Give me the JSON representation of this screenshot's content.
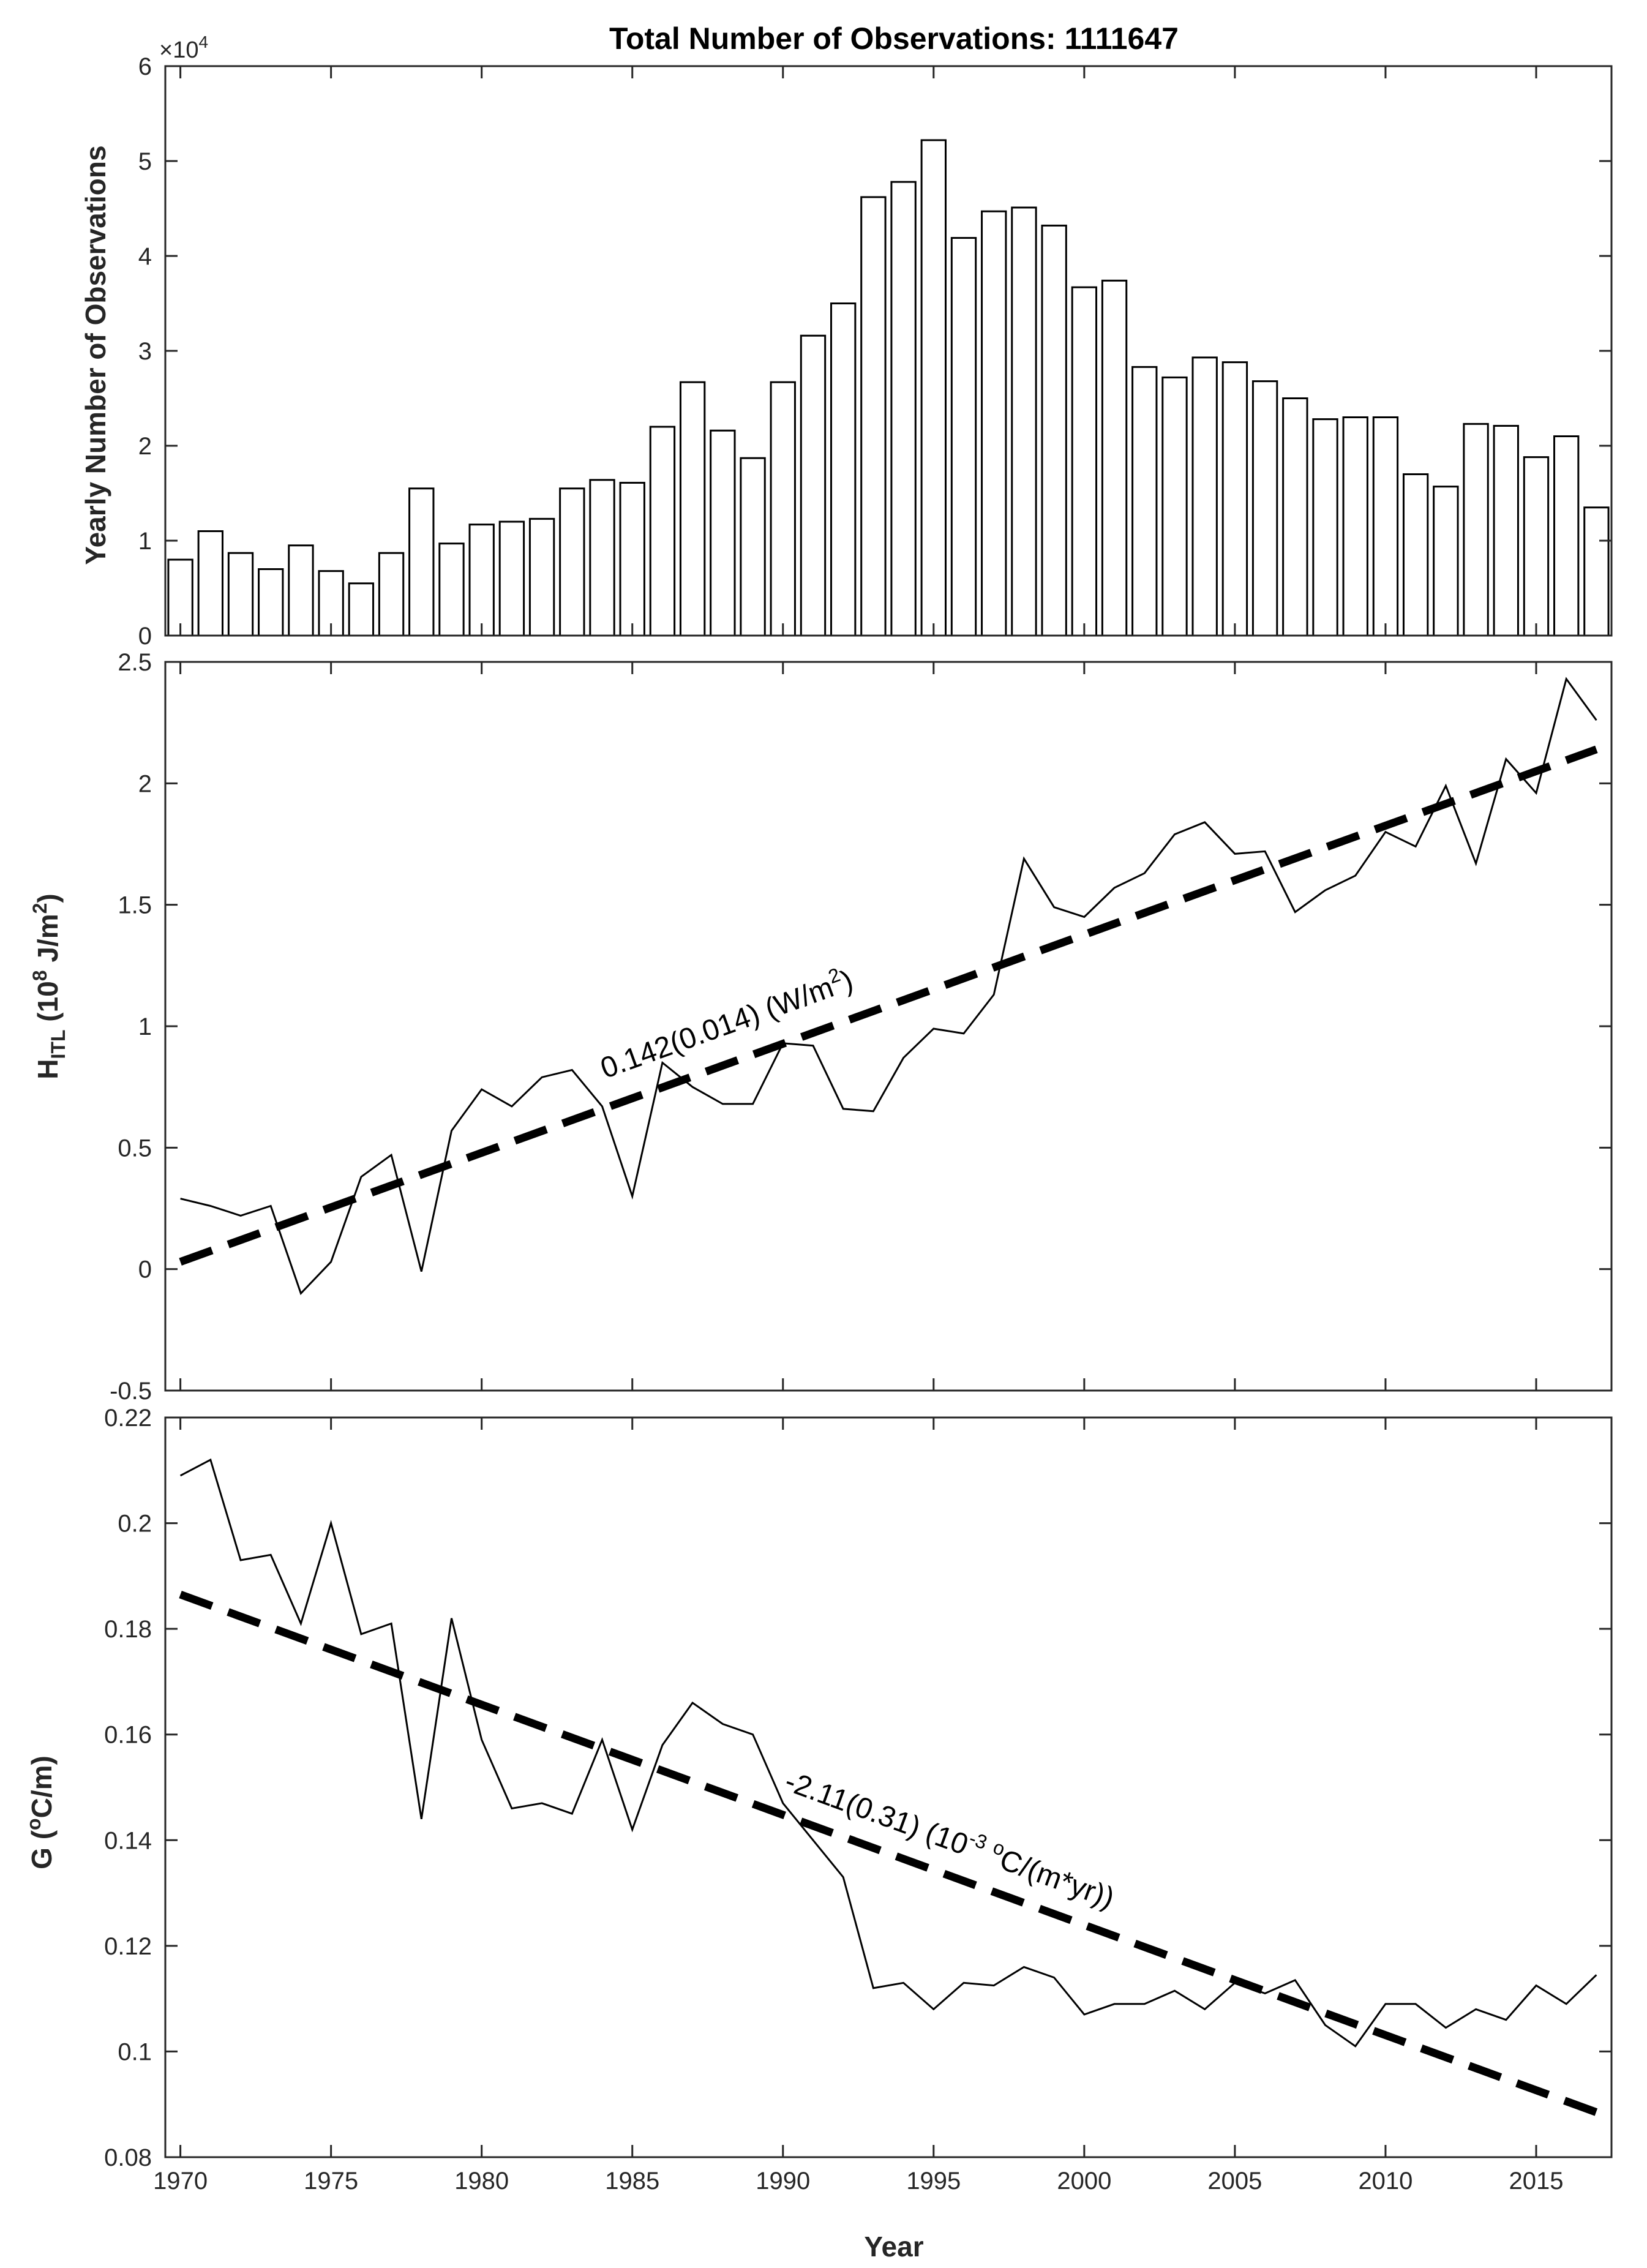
{
  "chart_data": [
    {
      "type": "bar",
      "title": "Total Number of Observations: 1111647",
      "ylabel": "Yearly Number of Observations",
      "y_exponent_label": "×10",
      "y_exponent_power": "4",
      "ylim": [
        0,
        6
      ],
      "yticks": [
        0,
        1,
        2,
        3,
        4,
        5,
        6
      ],
      "ytick_labels": [
        "0",
        "1",
        "2",
        "3",
        "4",
        "5",
        "6"
      ],
      "x": [
        1970,
        1971,
        1972,
        1973,
        1974,
        1975,
        1976,
        1977,
        1978,
        1979,
        1980,
        1981,
        1982,
        1983,
        1984,
        1985,
        1986,
        1987,
        1988,
        1989,
        1990,
        1991,
        1992,
        1993,
        1994,
        1995,
        1996,
        1997,
        1998,
        1999,
        2000,
        2001,
        2002,
        2003,
        2004,
        2005,
        2006,
        2007,
        2008,
        2009,
        2010,
        2011,
        2012,
        2013,
        2014,
        2015,
        2016,
        2017
      ],
      "values": [
        0.8,
        1.1,
        0.87,
        0.7,
        0.95,
        0.68,
        0.55,
        0.87,
        1.55,
        0.97,
        1.17,
        1.2,
        1.23,
        1.55,
        1.64,
        1.61,
        2.2,
        2.67,
        2.16,
        1.87,
        2.67,
        3.16,
        3.5,
        4.62,
        4.78,
        5.22,
        4.19,
        4.47,
        4.51,
        4.32,
        3.67,
        3.74,
        2.83,
        2.72,
        2.93,
        2.88,
        2.68,
        2.5,
        2.28,
        2.3,
        2.3,
        1.7,
        1.57,
        2.23,
        2.21,
        1.88,
        2.1,
        1.35
      ]
    },
    {
      "type": "line",
      "ylabel_main": "H",
      "ylabel_sub": "ITL",
      "ylabel_rest": " (10",
      "ylabel_sup": "8",
      "ylabel_units": " J/m",
      "ylabel_sup2": "2",
      "ylabel_close": ")",
      "ylim": [
        -0.5,
        2.5
      ],
      "yticks": [
        -0.5,
        0,
        0.5,
        1,
        1.5,
        2,
        2.5
      ],
      "ytick_labels": [
        "-0.5",
        "0",
        "0.5",
        "1",
        "1.5",
        "2",
        "2.5"
      ],
      "x": [
        1970,
        1971,
        1972,
        1973,
        1974,
        1975,
        1976,
        1977,
        1978,
        1979,
        1980,
        1981,
        1982,
        1983,
        1984,
        1985,
        1986,
        1987,
        1988,
        1989,
        1990,
        1991,
        1992,
        1993,
        1994,
        1995,
        1996,
        1997,
        1998,
        1999,
        2000,
        2001,
        2002,
        2003,
        2004,
        2005,
        2006,
        2007,
        2008,
        2009,
        2010,
        2011,
        2012,
        2013,
        2014,
        2015,
        2016,
        2017
      ],
      "values": [
        0.29,
        0.26,
        0.22,
        0.26,
        -0.1,
        0.03,
        0.38,
        0.47,
        -0.01,
        0.57,
        0.74,
        0.67,
        0.79,
        0.82,
        0.67,
        0.3,
        0.85,
        0.75,
        0.68,
        0.68,
        0.93,
        0.92,
        0.66,
        0.65,
        0.87,
        0.99,
        0.97,
        1.13,
        1.69,
        1.49,
        1.45,
        1.57,
        1.63,
        1.79,
        1.84,
        1.71,
        1.72,
        1.47,
        1.56,
        1.62,
        1.8,
        1.74,
        1.99,
        1.67,
        2.1,
        1.96,
        2.43,
        2.26
      ],
      "trend": {
        "x": [
          1970,
          2017
        ],
        "y": [
          0.03,
          2.14
        ]
      },
      "annotation_main": "0.142(0.014) (W/m",
      "annotation_sup": "2",
      "annotation_close": ")"
    },
    {
      "type": "line",
      "ylabel_main": "G (",
      "ylabel_sup": "o",
      "ylabel_rest": "C/m)",
      "xlabel": "Year",
      "ylim": [
        0.08,
        0.22
      ],
      "yticks": [
        0.08,
        0.1,
        0.12,
        0.14,
        0.16,
        0.18,
        0.2,
        0.22
      ],
      "ytick_labels": [
        "0.08",
        "0.1",
        "0.12",
        "0.14",
        "0.16",
        "0.18",
        "0.2",
        "0.22"
      ],
      "xticks": [
        1970,
        1975,
        1980,
        1985,
        1990,
        1995,
        2000,
        2005,
        2010,
        2015
      ],
      "xtick_labels": [
        "1970",
        "1975",
        "1980",
        "1985",
        "1990",
        "1995",
        "2000",
        "2005",
        "2010",
        "2015"
      ],
      "x": [
        1970,
        1971,
        1972,
        1973,
        1974,
        1975,
        1976,
        1977,
        1978,
        1979,
        1980,
        1981,
        1982,
        1983,
        1984,
        1985,
        1986,
        1987,
        1988,
        1989,
        1990,
        1991,
        1992,
        1993,
        1994,
        1995,
        1996,
        1997,
        1998,
        1999,
        2000,
        2001,
        2002,
        2003,
        2004,
        2005,
        2006,
        2007,
        2008,
        2009,
        2010,
        2011,
        2012,
        2013,
        2014,
        2015,
        2016,
        2017
      ],
      "values": [
        0.209,
        0.212,
        0.193,
        0.194,
        0.181,
        0.2,
        0.179,
        0.181,
        0.144,
        0.182,
        0.159,
        0.146,
        0.147,
        0.145,
        0.159,
        0.142,
        0.158,
        0.166,
        0.162,
        0.16,
        0.147,
        0.14,
        0.133,
        0.112,
        0.113,
        0.108,
        0.113,
        0.1125,
        0.116,
        0.114,
        0.107,
        0.109,
        0.109,
        0.1115,
        0.108,
        0.113,
        0.111,
        0.1135,
        0.105,
        0.101,
        0.109,
        0.109,
        0.1045,
        0.108,
        0.106,
        0.1125,
        0.109,
        0.1145
      ],
      "trend": {
        "x": [
          1970,
          2017
        ],
        "y": [
          0.1865,
          0.0885
        ]
      },
      "annotation_main": "-2.11(0.31) (10",
      "annotation_sup": "-3",
      "annotation_mid": " ",
      "annotation_sup2": "o",
      "annotation_close": "C/(m*yr))"
    }
  ]
}
